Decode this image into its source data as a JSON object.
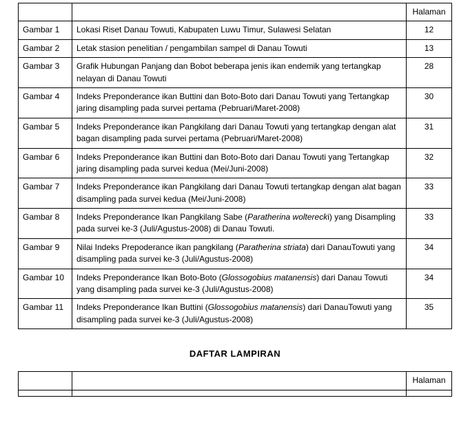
{
  "table1": {
    "page_header": "Halaman",
    "rows": [
      {
        "num": "Gambar 1",
        "desc": "Lokasi Riset Danau Towuti, Kabupaten Luwu Timur, Sulawesi Selatan",
        "page": "12"
      },
      {
        "num": "Gambar 2",
        "desc": "Letak stasion penelitian / pengambilan sampel di Danau Towuti",
        "page": "13"
      },
      {
        "num": "Gambar 3",
        "desc": "Grafik Hubungan Panjang dan Bobot beberapa jenis ikan endemik yang tertangkap nelayan di Danau Towuti",
        "page": "28"
      },
      {
        "num": "Gambar 4",
        "desc": "Indeks Preponderance ikan Buttini dan Boto-Boto dari Danau Towuti yang Tertangkap jaring disampling pada survei pertama (Pebruari/Maret-2008)",
        "page": "30"
      },
      {
        "num": "Gambar 5",
        "desc": "Indeks Preponderance ikan Pangkilang dari Danau Towuti yang tertangkap dengan alat bagan disampling pada survei pertama (Pebruari/Maret-2008)",
        "page": "31"
      },
      {
        "num": "Gambar 6",
        "desc": "Indeks Preponderance ikan Buttini dan Boto-Boto dari Danau Towuti yang Tertangkap jaring disampling pada survei kedua (Mei/Juni-2008)",
        "page": "32"
      },
      {
        "num": "Gambar 7",
        "desc": "Indeks Preponderance ikan Pangkilang dari Danau Towuti tertangkap dengan alat bagan disampling pada survei kedua (Mei/Juni-2008)",
        "page": "33"
      },
      {
        "num": "Gambar 8",
        "desc_pre": "Indeks Preponderance Ikan Pangkilang Sabe (",
        "desc_italic": "Paratherina woltereck",
        "desc_post": "i) yang Disampling pada survei ke-3 (Juli/Agustus-2008) di Danau Towuti.",
        "page": "33"
      },
      {
        "num": "Gambar 9",
        "desc_pre": "Nilai Indeks Prepoderance ikan pangkilang (",
        "desc_italic": "Paratherina striata",
        "desc_post": ") dari DanauTowuti yang disampling pada survei ke-3 (Juli/Agustus-2008)",
        "page": "34"
      },
      {
        "num": "Gambar 10",
        "desc_pre": "Indeks Preponderance Ikan Boto-Boto (",
        "desc_italic": "Glossogobius matanensis",
        "desc_post": ") dari Danau Towuti yang disampling pada survei ke-3 (Juli/Agustus-2008)",
        "page": "34"
      },
      {
        "num": "Gambar 11",
        "desc_pre": "Indeks Preponderance Ikan Buttini (",
        "desc_italic": "Glossogobius matanensis",
        "desc_post": ") dari DanauTowuti yang disampling pada survei ke-3 (Juli/Agustus-2008)",
        "page": "35"
      }
    ]
  },
  "section_title": "DAFTAR  LAMPIRAN",
  "table2": {
    "page_header": "Halaman"
  },
  "style": {
    "body_bg": "#ffffff",
    "text_color": "#000000",
    "border_color": "#000000",
    "font_size_body": 12,
    "font_size_title": 13,
    "col_num_width": 78,
    "col_page_width": 66,
    "body_width": 682,
    "body_height": 636
  }
}
